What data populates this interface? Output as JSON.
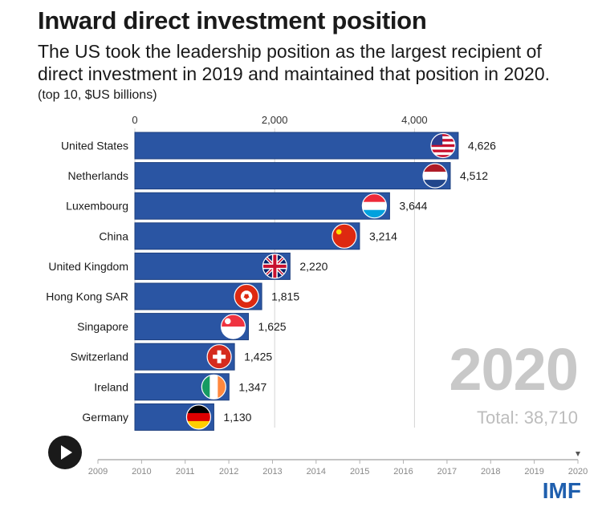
{
  "header": {
    "title": "Inward direct investment position",
    "subtitle": "The US took the leadership position as the largest recipient of direct investment in 2019 and maintained that position in 2020.",
    "note": "(top 10, $US billions)"
  },
  "display": {
    "current_year": "2020",
    "total_label": "Total: 38,710",
    "logo_text": "IMF"
  },
  "colors": {
    "bar": "#2a55a3",
    "bar_edge": "#1d3f7e",
    "gridline": "#d4d4d4",
    "timeline": "#b0b0b0",
    "big_year": "#c8c8c8"
  },
  "chart_data": {
    "type": "bar",
    "orientation": "horizontal",
    "title": "Inward direct investment position",
    "unit": "$US billions",
    "xlim": [
      0,
      4626
    ],
    "x_ticks": [
      0,
      2000,
      4000
    ],
    "x_tick_labels": [
      "0",
      "2,000",
      "4,000"
    ],
    "categories": [
      "United States",
      "Netherlands",
      "Luxembourg",
      "China",
      "United Kingdom",
      "Hong Kong SAR",
      "Singapore",
      "Switzerland",
      "Ireland",
      "Germany"
    ],
    "values": [
      4626,
      4512,
      3644,
      3214,
      2220,
      1815,
      1625,
      1425,
      1347,
      1130
    ],
    "value_labels": [
      "4,626",
      "4,512",
      "3,644",
      "3,214",
      "2,220",
      "1,815",
      "1,625",
      "1,425",
      "1,347",
      "1,130"
    ],
    "flags": [
      "us-flag-icon",
      "netherlands-flag-icon",
      "luxembourg-flag-icon",
      "china-flag-icon",
      "uk-flag-icon",
      "hong-kong-flag-icon",
      "singapore-flag-icon",
      "switzerland-flag-icon",
      "ireland-flag-icon",
      "germany-flag-icon"
    ],
    "timeline_years": [
      "2009",
      "2010",
      "2011",
      "2012",
      "2013",
      "2014",
      "2015",
      "2016",
      "2017",
      "2018",
      "2019",
      "2020"
    ]
  }
}
